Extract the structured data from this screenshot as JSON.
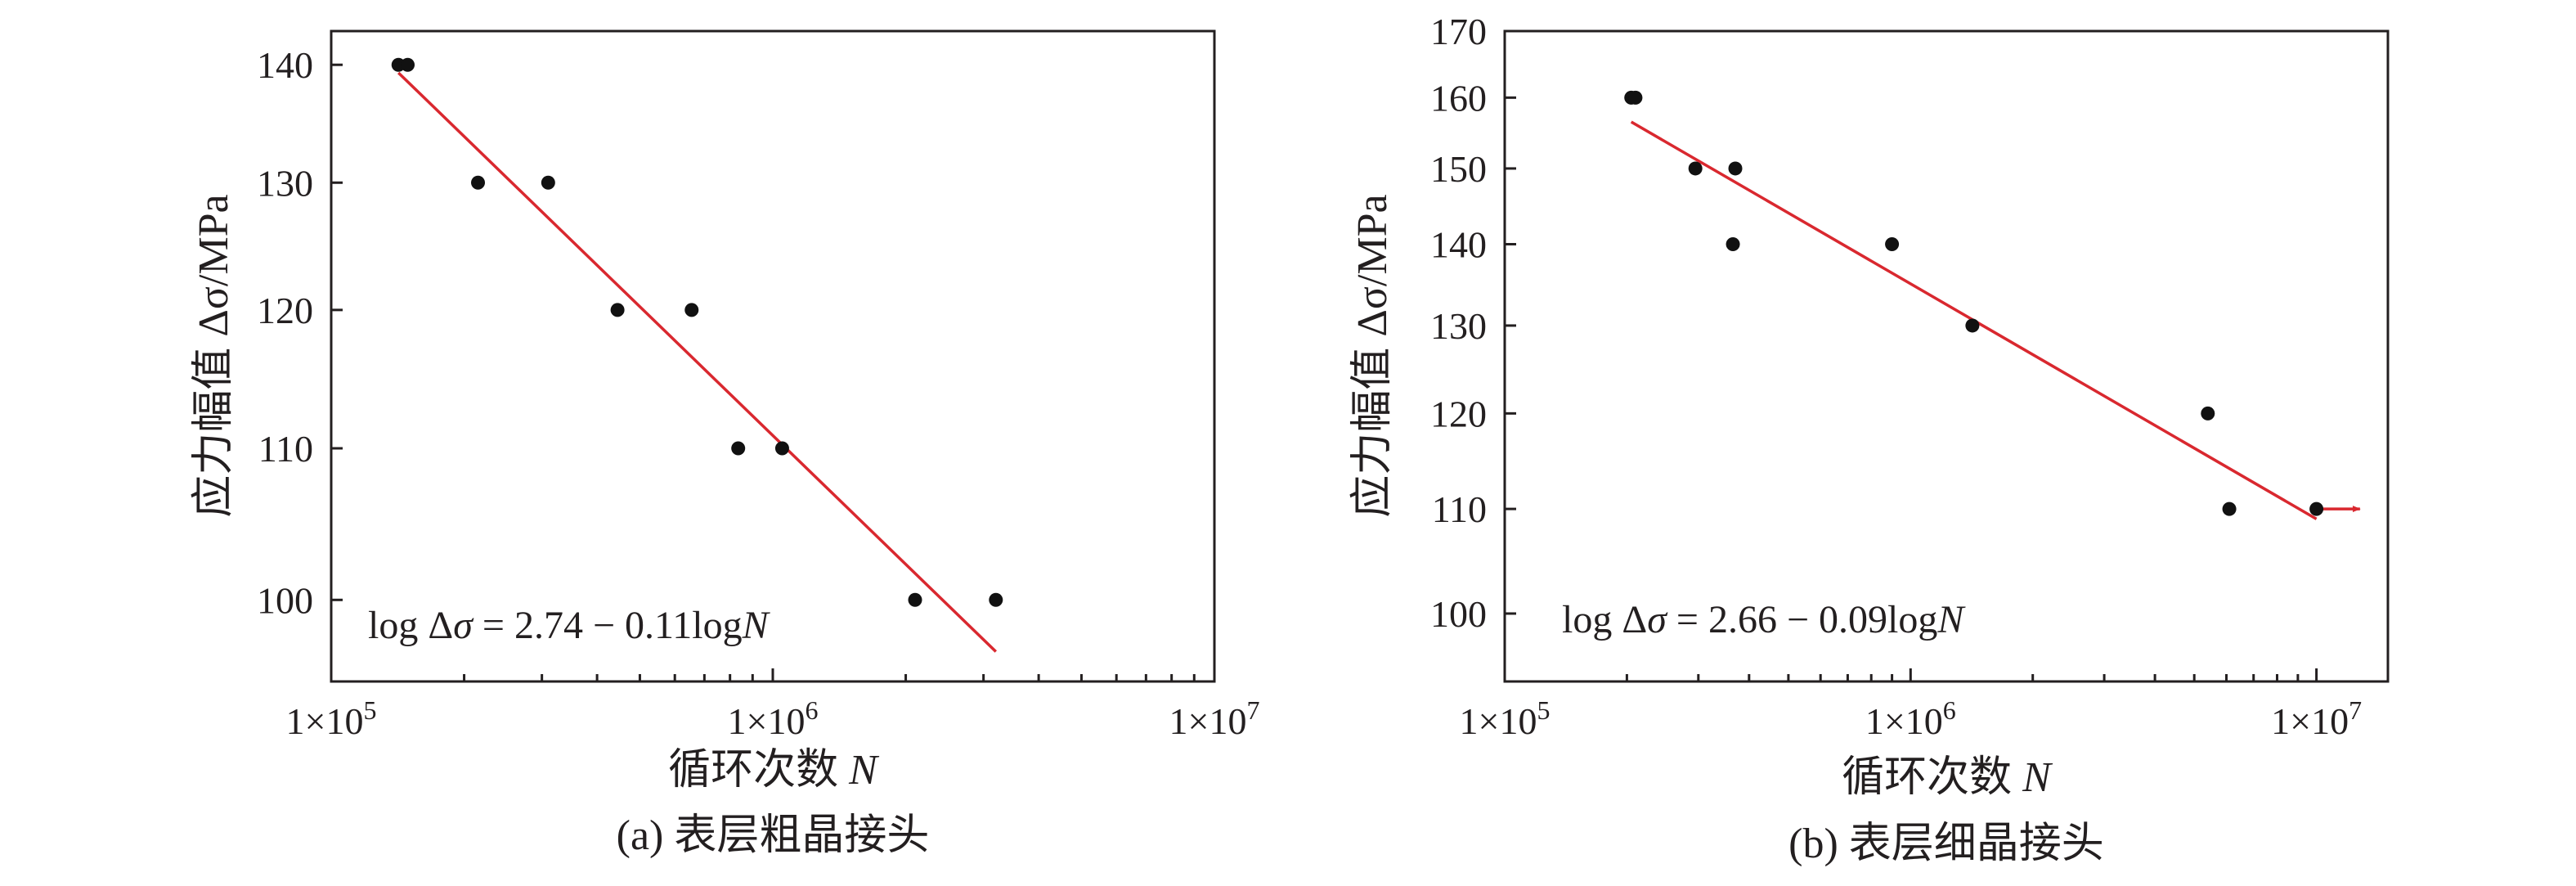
{
  "chart_data": [
    {
      "type": "scatter",
      "panel": "a",
      "caption": "(a) 表层粗晶接头",
      "xlabel": "循环次数",
      "xlabel_var": "N",
      "ylabel": "应力幅值 Δσ/MPa",
      "xscale": "log",
      "yscale": "log",
      "xlim": [
        100000,
        10000000
      ],
      "ylim": [
        95,
        143
      ],
      "xticks": [
        {
          "value": 100000,
          "base": "1×10",
          "exp": "5"
        },
        {
          "value": 1000000,
          "base": "1×10",
          "exp": "6"
        },
        {
          "value": 10000000,
          "base": "1×10",
          "exp": "7"
        }
      ],
      "yticks": [
        100,
        110,
        120,
        130,
        140
      ],
      "points": [
        {
          "x": 142000,
          "y": 140
        },
        {
          "x": 149000,
          "y": 140
        },
        {
          "x": 215000,
          "y": 130
        },
        {
          "x": 310000,
          "y": 130
        },
        {
          "x": 445000,
          "y": 120
        },
        {
          "x": 655000,
          "y": 120
        },
        {
          "x": 835000,
          "y": 110
        },
        {
          "x": 1050000,
          "y": 110
        },
        {
          "x": 2100000,
          "y": 100
        },
        {
          "x": 3200000,
          "y": 100
        }
      ],
      "fit": {
        "x_start": 142000,
        "y_start": 139.3,
        "x_end": 3200000,
        "y_end": 96.8,
        "color": "#d9282f"
      },
      "equation": {
        "pre": "log Δ",
        "sym": "σ",
        "mid": " = 2.74 − 0.11log",
        "var": "N"
      }
    },
    {
      "type": "scatter",
      "panel": "b",
      "caption": "(b) 表层细晶接头",
      "xlabel": "循环次数",
      "xlabel_var": "N",
      "ylabel": "应力幅值 Δσ/MPa",
      "xscale": "log",
      "yscale": "log",
      "xlim": [
        100000,
        15000000
      ],
      "ylim": [
        94,
        170
      ],
      "xticks": [
        {
          "value": 100000,
          "base": "1×10",
          "exp": "5"
        },
        {
          "value": 1000000,
          "base": "1×10",
          "exp": "6"
        },
        {
          "value": 10000000,
          "base": "1×10",
          "exp": "7"
        }
      ],
      "yticks": [
        100,
        110,
        120,
        130,
        140,
        150,
        160,
        170
      ],
      "points": [
        {
          "x": 205000,
          "y": 160
        },
        {
          "x": 210000,
          "y": 160
        },
        {
          "x": 295000,
          "y": 150
        },
        {
          "x": 370000,
          "y": 150
        },
        {
          "x": 365000,
          "y": 140
        },
        {
          "x": 900000,
          "y": 140
        },
        {
          "x": 1420000,
          "y": 130
        },
        {
          "x": 5400000,
          "y": 120
        },
        {
          "x": 6100000,
          "y": 110
        },
        {
          "x": 10000000,
          "y": 110
        }
      ],
      "fit": {
        "x_start": 205000,
        "y_start": 156.5,
        "x_end": 10000000,
        "y_end": 109,
        "color": "#d9282f"
      },
      "runout_arrow": {
        "x_start": 10000000,
        "x_end": 12800000,
        "y": 110,
        "color": "#d9282f"
      },
      "equation": {
        "pre": "log Δ",
        "sym": "σ",
        "mid": " = 2.66 − 0.09log",
        "var": "N"
      }
    }
  ]
}
